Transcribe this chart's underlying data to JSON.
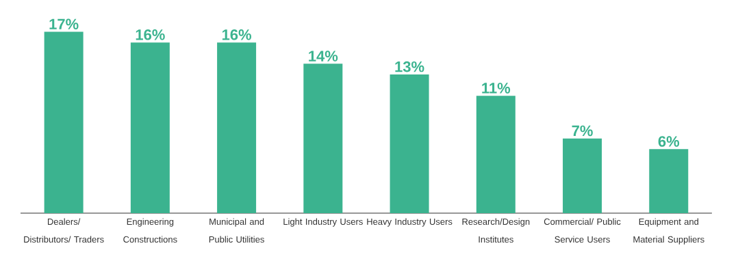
{
  "chart_data": {
    "type": "bar",
    "categories": [
      "Dealers/ Distributors/ Traders",
      "Engineering Constructions",
      "Municipal and Public Utilities",
      "Light Industry Users",
      "Heavy Industry Users",
      "Research/Design Institutes",
      "Commercial/ Public Service Users",
      "Equipment and Material Suppliers"
    ],
    "values": [
      17,
      16,
      16,
      14,
      13,
      11,
      7,
      6
    ],
    "value_labels": [
      "17%",
      "16%",
      "16%",
      "14%",
      "13%",
      "11%",
      "7%",
      "6%"
    ],
    "color": "#3bb38f"
  }
}
